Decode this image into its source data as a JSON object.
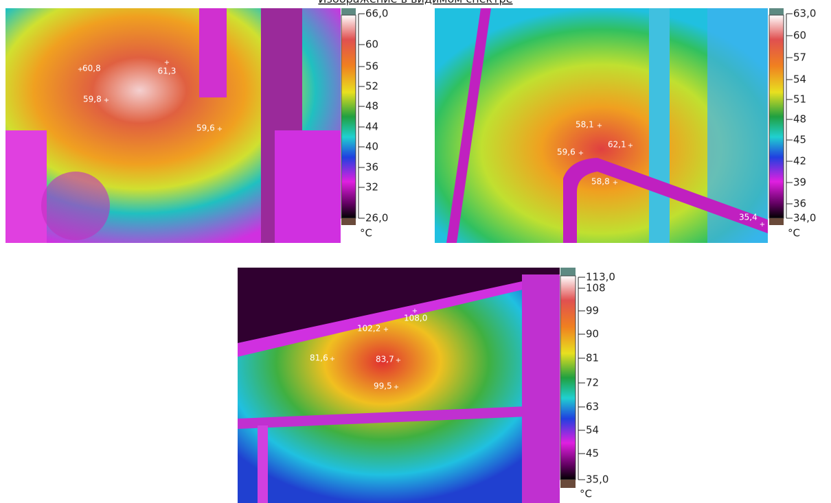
{
  "header": {
    "link": "Изображение в видимом спектре"
  },
  "images": [
    {
      "points": [
        "60,8",
        "61,3",
        "59,8",
        "59,6"
      ],
      "scale": {
        "ticks": [
          "66,0",
          "60",
          "56",
          "52",
          "48",
          "44",
          "40",
          "36",
          "32",
          "26,0"
        ],
        "unit": "°C"
      }
    },
    {
      "points": [
        "58,1",
        "62,1",
        "59,6",
        "58,8",
        "35,4"
      ],
      "scale": {
        "ticks": [
          "63,0",
          "60",
          "57",
          "54",
          "51",
          "48",
          "45",
          "42",
          "39",
          "36",
          "34,0"
        ],
        "unit": "°C"
      }
    },
    {
      "points": [
        "102,2",
        "108,0",
        "81,6",
        "83,7",
        "99,5"
      ],
      "scale": {
        "ticks": [
          "113,0",
          "108",
          "99",
          "90",
          "81",
          "72",
          "63",
          "54",
          "45",
          "35,0"
        ],
        "unit": "°C"
      }
    }
  ]
}
